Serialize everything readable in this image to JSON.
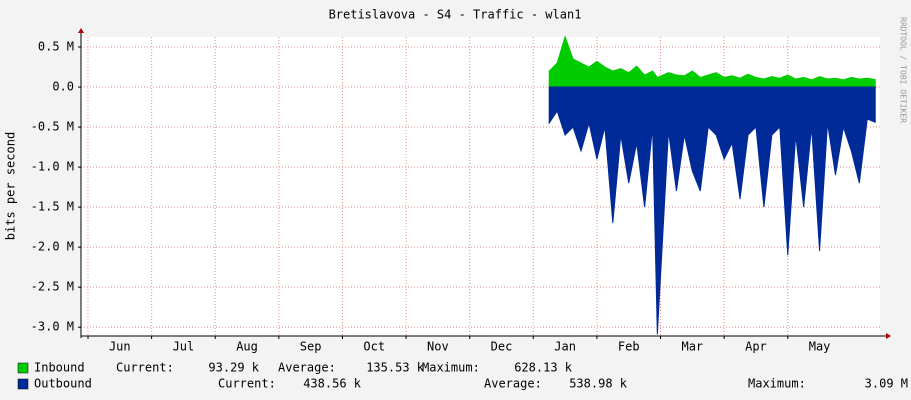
{
  "chart_data": {
    "type": "area",
    "title": "Bretislavova - S4 - Traffic - wlan1",
    "ylabel": "bits per second",
    "watermark": "RRDTOOL / TOBI OETIKER",
    "xlim": [
      -0.11,
      12.45
    ],
    "xticks": [
      {
        "value": 0,
        "label": "Jun"
      },
      {
        "value": 1,
        "label": "Jul"
      },
      {
        "value": 2,
        "label": "Aug"
      },
      {
        "value": 3,
        "label": "Sep"
      },
      {
        "value": 4,
        "label": "Oct"
      },
      {
        "value": 5,
        "label": "Nov"
      },
      {
        "value": 6,
        "label": "Dec"
      },
      {
        "value": 7,
        "label": "Jan"
      },
      {
        "value": 8,
        "label": "Feb"
      },
      {
        "value": 9,
        "label": "Mar"
      },
      {
        "value": 10,
        "label": "Apr"
      },
      {
        "value": 11,
        "label": "May"
      }
    ],
    "ylim": [
      -3110000,
      625000
    ],
    "yticks": [
      {
        "value": 500000,
        "label": "0.5 M"
      },
      {
        "value": 0,
        "label": "0.0"
      },
      {
        "value": -500000,
        "label": "-0.5 M"
      },
      {
        "value": -1000000,
        "label": "-1.0 M"
      },
      {
        "value": -1500000,
        "label": "-1.5 M"
      },
      {
        "value": -2000000,
        "label": "-2.0 M"
      },
      {
        "value": -2500000,
        "label": "-2.5 M"
      },
      {
        "value": -3000000,
        "label": "-3.0 M"
      }
    ],
    "grid": true,
    "x": [
      7.25,
      7.375,
      7.5,
      7.625,
      7.75,
      7.875,
      8.0,
      8.125,
      8.25,
      8.375,
      8.5,
      8.625,
      8.75,
      8.875,
      8.95,
      9.125,
      9.25,
      9.375,
      9.5,
      9.625,
      9.75,
      9.875,
      10.0,
      10.125,
      10.25,
      10.375,
      10.5,
      10.625,
      10.75,
      10.875,
      11.0,
      11.125,
      11.25,
      11.375,
      11.5,
      11.625,
      11.75,
      11.875,
      12.0,
      12.125,
      12.25,
      12.375
    ],
    "series": [
      {
        "name": "Inbound",
        "color": "#00cc00",
        "stats": [
          "Current:",
          "93.29 k",
          "Average:",
          "135.53 k",
          "Maximum:",
          "628.13 k"
        ],
        "values": [
          200000,
          300000,
          628000,
          350000,
          300000,
          250000,
          320000,
          250000,
          200000,
          230000,
          180000,
          260000,
          150000,
          200000,
          120000,
          180000,
          150000,
          140000,
          200000,
          120000,
          150000,
          180000,
          120000,
          140000,
          110000,
          160000,
          120000,
          100000,
          130000,
          110000,
          150000,
          100000,
          120000,
          90000,
          130000,
          100000,
          110000,
          90000,
          120000,
          100000,
          110000,
          93000
        ]
      },
      {
        "name": "Outbound",
        "color": "#002a97",
        "stats": [
          "Current:",
          "438.56 k",
          "Average:",
          "538.98 k",
          "Maximum:",
          "3.09 M"
        ],
        "values": [
          -450000,
          -300000,
          -600000,
          -500000,
          -800000,
          -450000,
          -900000,
          -500000,
          -1700000,
          -600000,
          -1200000,
          -700000,
          -1500000,
          -500000,
          -3090000,
          -550000,
          -1300000,
          -600000,
          -1050000,
          -1300000,
          -500000,
          -600000,
          -900000,
          -700000,
          -1400000,
          -600000,
          -500000,
          -1500000,
          -600000,
          -500000,
          -2100000,
          -600000,
          -1500000,
          -500000,
          -2050000,
          -450000,
          -1100000,
          -500000,
          -800000,
          -1200000,
          -400000,
          -440000
        ]
      }
    ]
  }
}
